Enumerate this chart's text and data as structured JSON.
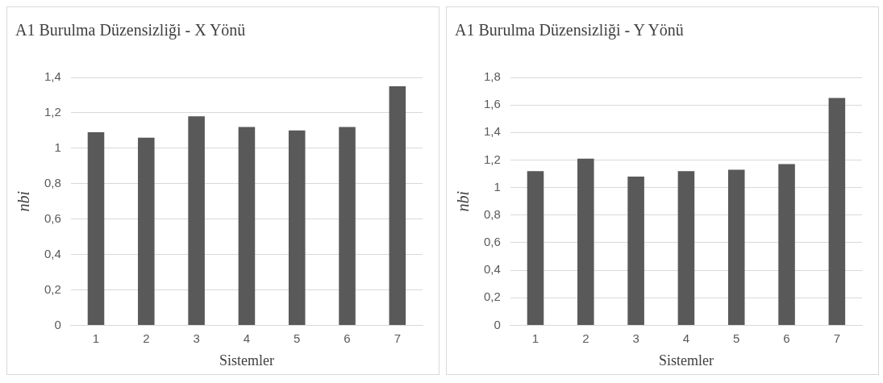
{
  "chart_data": [
    {
      "type": "bar",
      "title": "A1 Burulma Düzensizliği - X Yönü",
      "xlabel": "Sistemler",
      "ylabel": "nbi",
      "categories": [
        "1",
        "2",
        "3",
        "4",
        "5",
        "6",
        "7"
      ],
      "values": [
        1.09,
        1.06,
        1.18,
        1.12,
        1.1,
        1.12,
        1.35
      ],
      "color": "#595959",
      "ylim": [
        0,
        1.4
      ],
      "yticks": [
        {
          "value": 0,
          "label": "0"
        },
        {
          "value": 0.2,
          "label": "0,2"
        },
        {
          "value": 0.4,
          "label": "0,4"
        },
        {
          "value": 0.6,
          "label": "0,6"
        },
        {
          "value": 0.8,
          "label": "0,8"
        },
        {
          "value": 1,
          "label": "1"
        },
        {
          "value": 1.2,
          "label": "1,2"
        },
        {
          "value": 1.4,
          "label": "1,4"
        }
      ],
      "grid": "y",
      "legend": false
    },
    {
      "type": "bar",
      "title": "A1 Burulma Düzensizliği - Y Yönü",
      "xlabel": "Sistemler",
      "ylabel": "nbi",
      "categories": [
        "1",
        "2",
        "3",
        "4",
        "5",
        "6",
        "7"
      ],
      "values": [
        1.12,
        1.21,
        1.08,
        1.12,
        1.13,
        1.17,
        1.65
      ],
      "color": "#595959",
      "ylim": [
        0,
        1.8
      ],
      "yticks": [
        {
          "value": 0,
          "label": "0"
        },
        {
          "value": 0.2,
          "label": "0,2"
        },
        {
          "value": 0.4,
          "label": "0,4"
        },
        {
          "value": 0.6,
          "label": "0,6"
        },
        {
          "value": 0.8,
          "label": "0,8"
        },
        {
          "value": 1,
          "label": "1"
        },
        {
          "value": 1.2,
          "label": "1,2"
        },
        {
          "value": 1.4,
          "label": "1,4"
        },
        {
          "value": 1.6,
          "label": "1,6"
        },
        {
          "value": 1.8,
          "label": "1,8"
        }
      ],
      "grid": "y",
      "legend": false
    }
  ]
}
